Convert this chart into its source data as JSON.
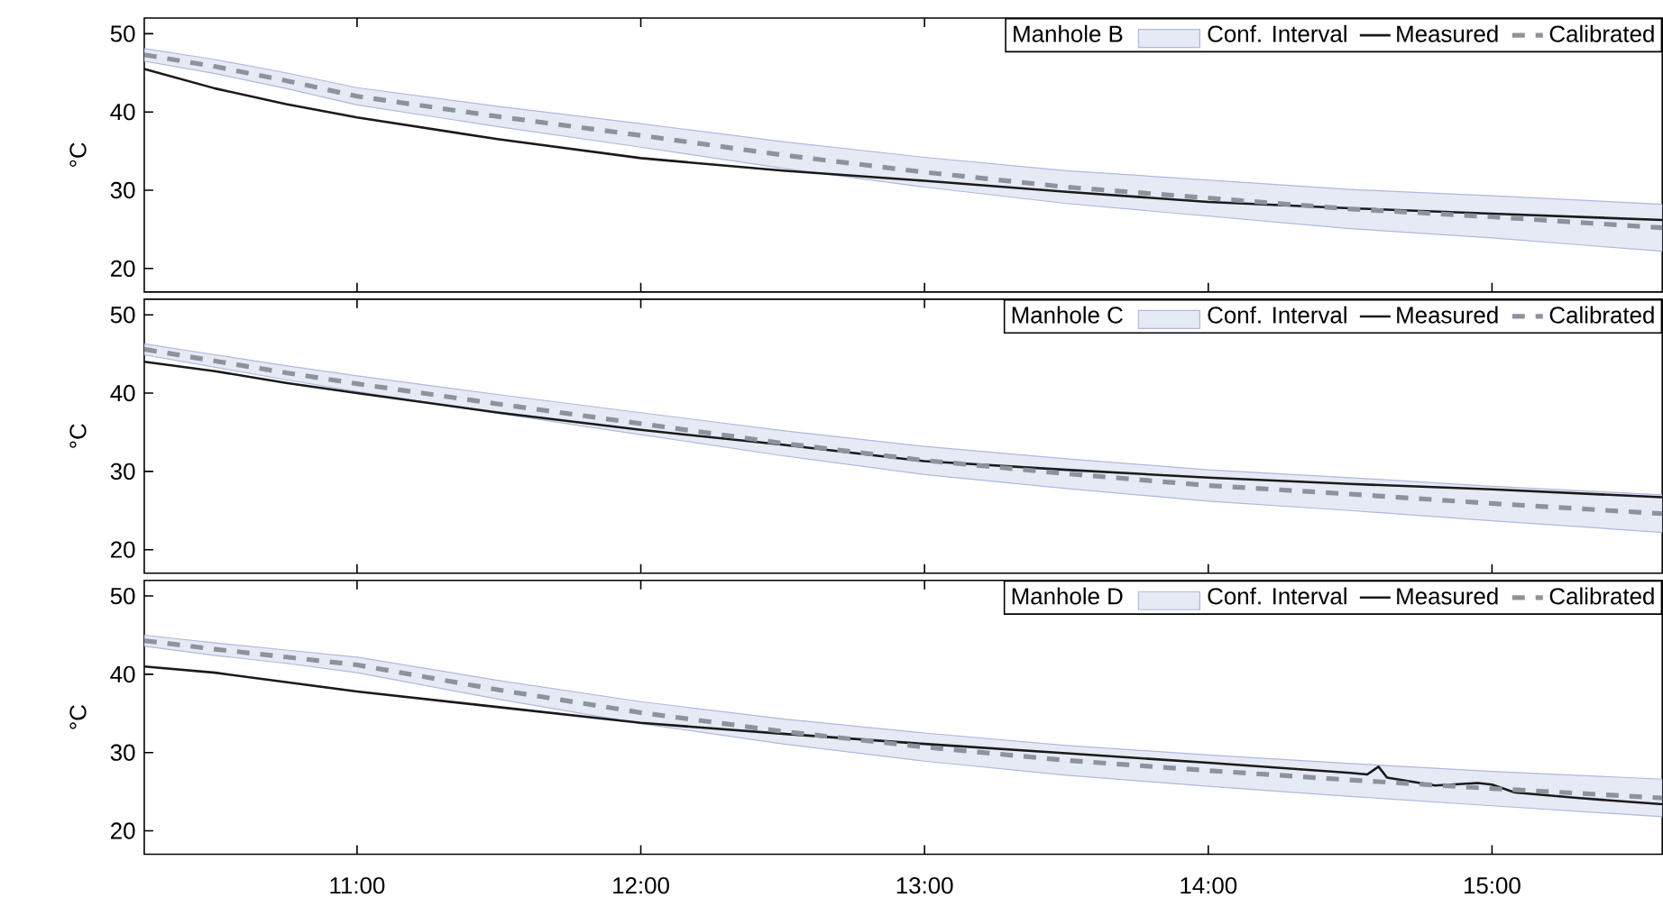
{
  "chart_data": [
    {
      "type": "line",
      "legend_title": "Manhole B",
      "ylabel": "°C",
      "annotations": [
        "Conf. Interval"
      ],
      "xlim": [
        10.25,
        15.6
      ],
      "ylim": [
        17,
        52
      ],
      "xticks": [
        {
          "value": 11,
          "label": null
        },
        {
          "value": 12,
          "label": null
        },
        {
          "value": 13,
          "label": null
        },
        {
          "value": 14,
          "label": null
        },
        {
          "value": 15,
          "label": null
        }
      ],
      "yticks": [
        20,
        30,
        40,
        50
      ],
      "tick_labels": "y",
      "legend": "top right",
      "x": [
        10.25,
        10.5,
        10.75,
        11,
        11.5,
        12,
        12.5,
        13,
        13.5,
        14,
        14.5,
        15,
        15.6
      ],
      "series": [
        {
          "name": "Measured",
          "color": "#1a1a1a",
          "line_style": "solid",
          "values": [
            45.5,
            43.0,
            41.0,
            39.3,
            36.5,
            34.1,
            32.5,
            31.2,
            29.8,
            28.5,
            27.7,
            27.0,
            26.2
          ]
        },
        {
          "name": "Calibrated",
          "color": "#8c939c",
          "line_style": "dashed",
          "values": [
            47.3,
            45.8,
            44.0,
            42.0,
            39.4,
            37.0,
            34.5,
            32.3,
            30.4,
            29.0,
            27.6,
            26.6,
            25.2
          ],
          "lower": [
            46.5,
            44.9,
            43.0,
            40.9,
            38.1,
            35.5,
            32.8,
            30.4,
            28.3,
            26.7,
            25.1,
            23.9,
            22.2
          ],
          "upper": [
            48.1,
            46.7,
            45.0,
            43.1,
            40.7,
            38.5,
            36.2,
            34.2,
            32.5,
            31.3,
            30.1,
            29.3,
            28.2
          ]
        }
      ]
    },
    {
      "type": "line",
      "legend_title": "Manhole C",
      "ylabel": "°C",
      "annotations": [
        "Conf. Interval"
      ],
      "xlim": [
        10.25,
        15.6
      ],
      "ylim": [
        17,
        52
      ],
      "xticks": [
        {
          "value": 11,
          "label": null
        },
        {
          "value": 12,
          "label": null
        },
        {
          "value": 13,
          "label": null
        },
        {
          "value": 14,
          "label": null
        },
        {
          "value": 15,
          "label": null
        }
      ],
      "yticks": [
        20,
        30,
        40,
        50
      ],
      "tick_labels": "y",
      "legend": "top right",
      "x": [
        10.25,
        10.5,
        10.75,
        11,
        11.5,
        12,
        12.5,
        13,
        13.5,
        14,
        14.5,
        15,
        15.6
      ],
      "series": [
        {
          "name": "Measured",
          "color": "#1a1a1a",
          "line_style": "solid",
          "values": [
            44.0,
            42.8,
            41.3,
            40.0,
            37.5,
            35.3,
            33.4,
            31.3,
            30.2,
            29.2,
            28.4,
            27.7,
            26.7
          ]
        },
        {
          "name": "Calibrated",
          "color": "#8c939c",
          "line_style": "dashed",
          "values": [
            45.6,
            44.1,
            42.6,
            41.2,
            38.6,
            36.1,
            33.6,
            31.4,
            29.7,
            28.2,
            27.1,
            25.9,
            24.6
          ],
          "lower": [
            44.9,
            43.3,
            41.7,
            40.2,
            37.4,
            34.7,
            32.0,
            29.6,
            27.8,
            26.2,
            25.0,
            23.7,
            22.2
          ],
          "upper": [
            46.3,
            44.9,
            43.5,
            42.2,
            39.8,
            37.5,
            35.2,
            33.2,
            31.6,
            30.2,
            29.2,
            28.1,
            27.0
          ]
        }
      ]
    },
    {
      "type": "line",
      "legend_title": "Manhole D",
      "ylabel": "°C",
      "annotations": [
        "Conf. Interval"
      ],
      "xlim": [
        10.25,
        15.6
      ],
      "ylim": [
        17,
        52
      ],
      "xticks": [
        {
          "value": 11,
          "label": "11:00"
        },
        {
          "value": 12,
          "label": "12:00"
        },
        {
          "value": 13,
          "label": "13:00"
        },
        {
          "value": 14,
          "label": "14:00"
        },
        {
          "value": 15,
          "label": "15:00"
        }
      ],
      "yticks": [
        20,
        30,
        40,
        50
      ],
      "legend": "top right",
      "x": [
        10.25,
        10.5,
        10.75,
        11,
        11.5,
        12,
        12.5,
        13,
        13.5,
        14,
        14.5,
        15,
        15.6
      ],
      "series": [
        {
          "name": "Measured",
          "color": "#1a1a1a",
          "line_style": "solid",
          "x": [
            10.25,
            10.5,
            10.75,
            11,
            11.5,
            12,
            12.5,
            13,
            13.5,
            14,
            14.5,
            14.56,
            14.6,
            14.63,
            14.8,
            14.95,
            15.0,
            15.08,
            15.3,
            15.6
          ],
          "values": [
            41.0,
            40.2,
            39.0,
            37.8,
            35.8,
            33.8,
            32.4,
            31.1,
            29.9,
            28.7,
            27.4,
            27.2,
            28.2,
            26.8,
            25.8,
            26.1,
            25.9,
            24.9,
            24.2,
            23.4
          ]
        },
        {
          "name": "Calibrated",
          "color": "#8c939c",
          "line_style": "dashed",
          "values": [
            44.3,
            43.2,
            42.2,
            41.2,
            38.0,
            35.1,
            32.7,
            30.7,
            29.0,
            27.7,
            26.5,
            25.4,
            24.2
          ],
          "lower": [
            43.6,
            42.4,
            41.4,
            40.2,
            36.8,
            33.7,
            31.1,
            28.9,
            27.1,
            25.7,
            24.4,
            23.2,
            21.8
          ],
          "upper": [
            45.0,
            44.0,
            43.1,
            42.2,
            39.2,
            36.5,
            34.3,
            32.5,
            30.9,
            29.7,
            28.6,
            27.6,
            26.6
          ]
        }
      ]
    }
  ]
}
